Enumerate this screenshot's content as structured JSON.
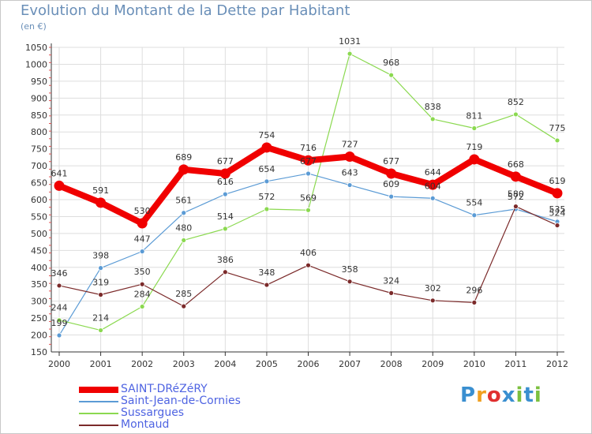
{
  "title": "Evolution du Montant de la Dette par Habitant",
  "unit": "(en €)",
  "brand": {
    "letters": [
      "P",
      "r",
      "o",
      "x",
      "i",
      "t",
      "i"
    ],
    "colors": [
      "#3a8fd0",
      "#f0a020",
      "#e03030",
      "#3a8fd0",
      "#7cc040",
      "#3a8fd0",
      "#7cc040"
    ]
  },
  "chart_data": {
    "type": "line",
    "x": [
      "2000",
      "2001",
      "2002",
      "2003",
      "2004",
      "2005",
      "2006",
      "2007",
      "2008",
      "2009",
      "2010",
      "2011",
      "2012"
    ],
    "ylim": [
      150,
      1050
    ],
    "yticks": [
      "150",
      "200",
      "250",
      "300",
      "350",
      "400",
      "450",
      "500",
      "550",
      "600",
      "650",
      "700",
      "750",
      "800",
      "850",
      "900",
      "950",
      "1000",
      "1050"
    ],
    "grid": true,
    "legend_position": "bottom-left",
    "series": [
      {
        "name": "SAINT-DRéZéRY",
        "color": "#f00000",
        "values": [
          641,
          591,
          530,
          689,
          677,
          754,
          716,
          727,
          677,
          644,
          719,
          668,
          619
        ]
      },
      {
        "name": "Saint-Jean-de-Cornies",
        "color": "#5b9bd5",
        "values": [
          199,
          398,
          447,
          561,
          616,
          654,
          677,
          643,
          609,
          604,
          554,
          572,
          535
        ]
      },
      {
        "name": "Sussargues",
        "color": "#8bd950",
        "values": [
          244,
          214,
          284,
          480,
          514,
          572,
          569,
          1031,
          968,
          838,
          811,
          852,
          775
        ]
      },
      {
        "name": "Montaud",
        "color": "#7b2a2a",
        "values": [
          346,
          319,
          350,
          285,
          386,
          348,
          406,
          358,
          324,
          302,
          296,
          580,
          524
        ]
      }
    ]
  }
}
